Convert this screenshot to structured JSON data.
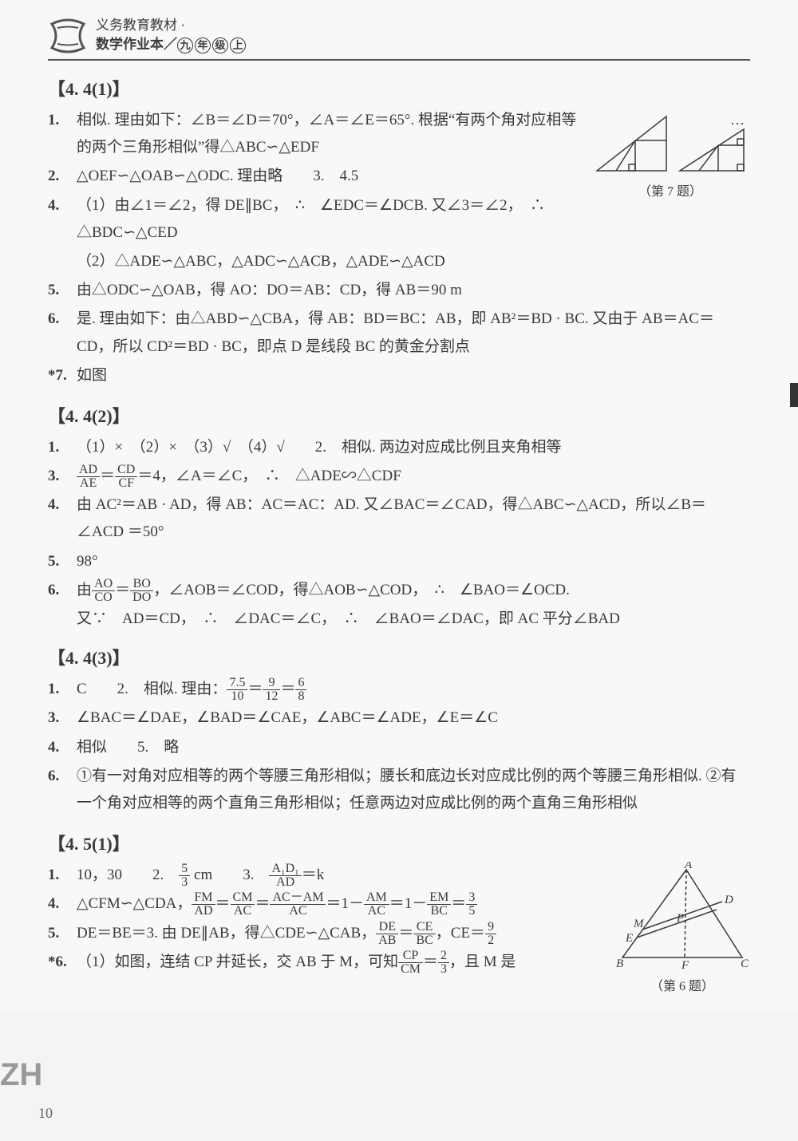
{
  "header": {
    "line1": "义务教育教材 ·",
    "line2_prefix": "数学作业本／",
    "grade_chars": [
      "九",
      "年",
      "级",
      "上"
    ]
  },
  "sections": [
    {
      "title": "【4. 4(1)】",
      "figure": {
        "caption": "（第 7 题）",
        "type": "two-right-triangles",
        "stroke": "#3a3a3a"
      },
      "items": [
        {
          "num": "1.",
          "text": "相似. 理由如下：∠B＝∠D＝70°，∠A＝∠E＝65°. 根据“有两个角对应相等的两个三角形相似”得△ABC∽△EDF"
        },
        {
          "num": "2.",
          "text": "△OEF∽△OAB∽△ODC. 理由略　　3.　4.5",
          "inline": true
        },
        {
          "num": "4.",
          "text": "（1）由∠1＝∠2，得 DE∥BC，　∴　∠EDC＝∠DCB. 又∠3＝∠2，　∴　△BDC∽△CED"
        },
        {
          "indent": true,
          "text": "（2）△ADE∽△ABC，△ADC∽△ACB，△ADE∽△ACD"
        },
        {
          "num": "5.",
          "text": "由△ODC∽△OAB，得 AO：DO＝AB：CD，得 AB＝90 m"
        },
        {
          "num": "6.",
          "text": "是. 理由如下：由△ABD∽△CBA，得 AB：BD＝BC：AB，即 AB²＝BD · BC. 又由于 AB＝AC＝CD，所以 CD²＝BD · BC，即点 D 是线段 BC 的黄金分割点"
        },
        {
          "num": "*7.",
          "text": "如图"
        }
      ]
    },
    {
      "title": "【4. 4(2)】",
      "items": [
        {
          "num": "1.",
          "text": "（1）×　（2）×　（3）√　（4）√　　2.　相似. 两边对应成比例且夹角相等"
        },
        {
          "num": "3.",
          "frac_line": true,
          "parts": [
            {
              "frac": {
                "t": "AD",
                "b": "AE"
              }
            },
            "＝",
            {
              "frac": {
                "t": "CD",
                "b": "CF"
              }
            },
            "＝4，∠A＝∠C，　∴　△ADE∽△CDF"
          ]
        },
        {
          "num": "4.",
          "text": "由 AC²＝AB · AD，得 AB：AC＝AC：AD. 又∠BAC＝∠CAD，得△ABC∽△ACD，所以∠B＝∠ACD ＝50°"
        },
        {
          "num": "5.",
          "text": "98°"
        },
        {
          "num": "6.",
          "frac_line": true,
          "parts": [
            "由",
            {
              "frac": {
                "t": "AO",
                "b": "CO"
              }
            },
            "＝",
            {
              "frac": {
                "t": "BO",
                "b": "DO"
              }
            },
            "，∠AOB＝∠COD，得△AOB∽△COD，　∴　∠BAO＝∠OCD."
          ]
        },
        {
          "indent": true,
          "text": "又∵　AD＝CD，　∴　∠DAC＝∠C，　∴　∠BAO＝∠DAC，即 AC 平分∠BAD"
        }
      ]
    },
    {
      "title": "【4. 4(3)】",
      "items": [
        {
          "num": "1.",
          "frac_line": true,
          "parts": [
            "C　　2.　相似. 理由：",
            {
              "frac": {
                "t": "7.5",
                "b": "10"
              }
            },
            "＝",
            {
              "frac": {
                "t": "9",
                "b": "12"
              }
            },
            "＝",
            {
              "frac": {
                "t": "6",
                "b": "8"
              }
            }
          ]
        },
        {
          "num": "3.",
          "text": "∠BAC＝∠DAE，∠BAD＝∠CAE，∠ABC＝∠ADE，∠E＝∠C"
        },
        {
          "num": "4.",
          "text": "相似　　5.　略"
        },
        {
          "num": "6.",
          "text": "①有一对角对应相等的两个等腰三角形相似；腰长和底边长对应成比例的两个等腰三角形相似. ②有一个角对应相等的两个直角三角形相似；任意两边对应成比例的两个直角三角形相似"
        }
      ]
    },
    {
      "title": "【4. 5(1)】",
      "figure": {
        "caption": "（第 6 题）",
        "type": "labeled-triangle",
        "labels": [
          "A",
          "D",
          "M",
          "P",
          "E",
          "B",
          "F",
          "C"
        ],
        "stroke": "#3a3a3a"
      },
      "items": [
        {
          "num": "1.",
          "frac_line": true,
          "parts": [
            "10，30　　2.　",
            {
              "frac": {
                "t": "5",
                "b": "3"
              }
            },
            " cm　　3.　",
            {
              "frac": {
                "t": "A₁D₁",
                "b": "AD"
              }
            },
            "＝k"
          ]
        },
        {
          "num": "4.",
          "frac_line": true,
          "parts": [
            "△CFM∽△CDA，",
            {
              "frac": {
                "t": "FM",
                "b": "AD"
              }
            },
            "＝",
            {
              "frac": {
                "t": "CM",
                "b": "AC"
              }
            },
            "＝",
            {
              "frac": {
                "t": "AC－AM",
                "b": "AC"
              }
            },
            "＝1－",
            {
              "frac": {
                "t": "AM",
                "b": "AC"
              }
            },
            "＝1－",
            {
              "frac": {
                "t": "EM",
                "b": "BC"
              }
            },
            "＝",
            {
              "frac": {
                "t": "3",
                "b": "5"
              }
            }
          ]
        },
        {
          "num": "5.",
          "frac_line": true,
          "parts": [
            "DE＝BE＝3. 由 DE∥AB，得△CDE∽△CAB，",
            {
              "frac": {
                "t": "DE",
                "b": "AB"
              }
            },
            "＝",
            {
              "frac": {
                "t": "CE",
                "b": "BC"
              }
            },
            "，CE＝",
            {
              "frac": {
                "t": "9",
                "b": "2"
              }
            }
          ]
        },
        {
          "num": "*6.",
          "frac_line": true,
          "parts": [
            "（1）如图，连结 CP 并延长，交 AB 于 M，可知",
            {
              "frac": {
                "t": "CP",
                "b": "CM"
              }
            },
            "＝",
            {
              "frac": {
                "t": "2",
                "b": "3"
              }
            },
            "，且 M 是"
          ]
        }
      ]
    }
  ],
  "page_number": "10",
  "corner_mark": "ZH"
}
